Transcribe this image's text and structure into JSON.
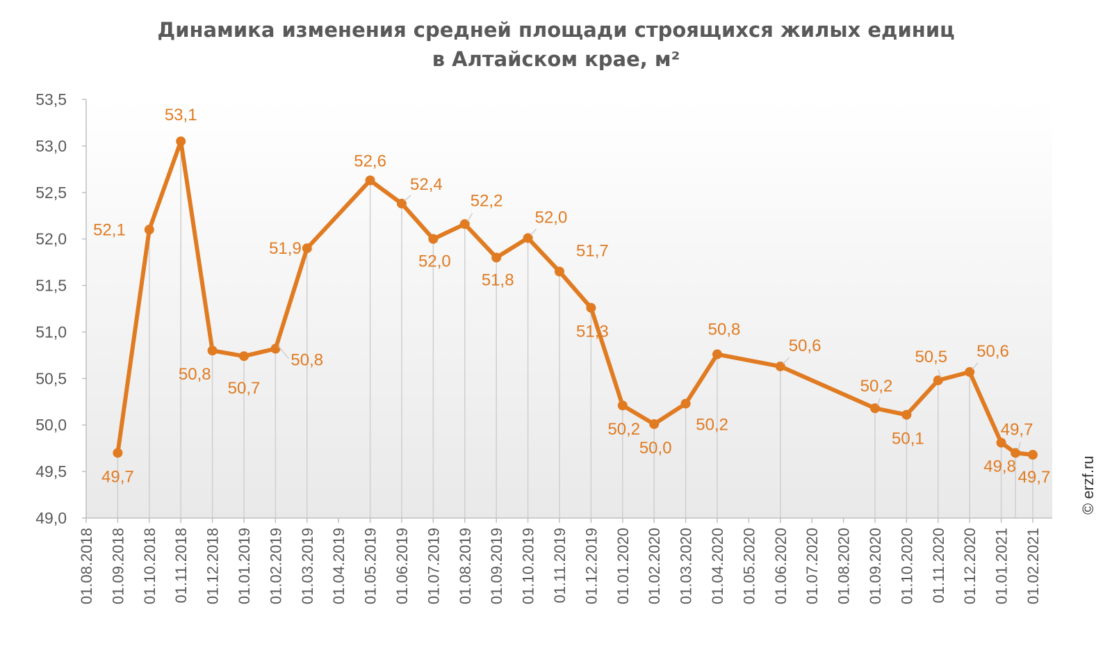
{
  "chart_data": {
    "type": "line",
    "title_line1": "Динамика изменения средней площади строящихся жилых единиц",
    "title_line2": "в Алтайском крае, м²",
    "xlabel": "",
    "ylabel": "",
    "ylim": [
      49.0,
      53.5
    ],
    "ytick_values": [
      49.0,
      49.5,
      50.0,
      50.5,
      51.0,
      51.5,
      52.0,
      52.5,
      53.0,
      53.5
    ],
    "ytick_labels": [
      "49,0",
      "49,5",
      "50,0",
      "50,5",
      "51,0",
      "51,5",
      "52,0",
      "52,5",
      "53,0",
      "53,5"
    ],
    "categories": [
      "01.08.2018",
      "01.09.2018",
      "01.10.2018",
      "01.11.2018",
      "01.12.2018",
      "01.01.2019",
      "01.02.2019",
      "01.03.2019",
      "01.04.2019",
      "01.05.2019",
      "01.06.2019",
      "01.07.2019",
      "01.08.2019",
      "01.09.2019",
      "01.10.2019",
      "01.11.2019",
      "01.12.2019",
      "01.01.2020",
      "01.02.2020",
      "01.03.2020",
      "01.04.2020",
      "01.05.2020",
      "01.06.2020",
      "01.07.2020",
      "01.08.2020",
      "01.09.2020",
      "01.10.2020",
      "01.11.2020",
      "01.12.2020",
      "01.01.2021",
      "01.02.2021"
    ],
    "points": [
      {
        "date": "01.09.2018",
        "value": 49.7,
        "label": "49,7"
      },
      {
        "date": "01.10.2018",
        "value": 52.1,
        "label": "52,1"
      },
      {
        "date": "01.11.2018",
        "value": 53.05,
        "label": "53,1"
      },
      {
        "date": "01.12.2018",
        "value": 50.8,
        "label": "50,8"
      },
      {
        "date": "01.01.2019",
        "value": 50.74,
        "label": "50,7"
      },
      {
        "date": "01.02.2019",
        "value": 50.82,
        "label": "50,8"
      },
      {
        "date": "01.03.2019",
        "value": 51.9,
        "label": "51,9"
      },
      {
        "date": "01.05.2019",
        "value": 52.63,
        "label": "52,6"
      },
      {
        "date": "01.06.2019",
        "value": 52.38,
        "label": "52,4"
      },
      {
        "date": "01.07.2019",
        "value": 52.0,
        "label": "52,0"
      },
      {
        "date": "01.08.2019",
        "value": 52.16,
        "label": "52,2"
      },
      {
        "date": "01.09.2019",
        "value": 51.8,
        "label": "51,8"
      },
      {
        "date": "01.10.2019",
        "value": 52.01,
        "label": "52,0"
      },
      {
        "date": "01.11.2019",
        "value": 51.65,
        "label": "51,7"
      },
      {
        "date": "01.12.2019",
        "value": 51.26,
        "label": "51,3"
      },
      {
        "date": "01.01.2020",
        "value": 50.21,
        "label": "50,2"
      },
      {
        "date": "01.02.2020",
        "value": 50.01,
        "label": "50,0"
      },
      {
        "date": "01.03.2020",
        "value": 50.23,
        "label": "50,2"
      },
      {
        "date": "01.04.2020",
        "value": 50.76,
        "label": "50,8"
      },
      {
        "date": "01.06.2020",
        "value": 50.63,
        "label": "50,6"
      },
      {
        "date": "01.09.2020",
        "value": 50.18,
        "label": "50,2"
      },
      {
        "date": "01.10.2020",
        "value": 50.11,
        "label": "50,1"
      },
      {
        "date": "01.11.2020",
        "value": 50.48,
        "label": "50,5"
      },
      {
        "date": "01.12.2020",
        "value": 50.57,
        "label": "50,6"
      },
      {
        "date": "01.01.2021",
        "value": 49.81,
        "label": "49,8"
      },
      {
        "date": "15.01.2021",
        "value": 49.7,
        "label": "49,7"
      },
      {
        "date": "01.02.2021",
        "value": 49.68,
        "label": "49,7"
      }
    ],
    "grid": false,
    "drop_lines": true,
    "legend": "none",
    "colors": {
      "line": "#e07b22",
      "label": "#e07b22",
      "drop_line": "#cfcfcf",
      "axis_text": "#595959"
    }
  },
  "watermark": "© erzf.ru"
}
